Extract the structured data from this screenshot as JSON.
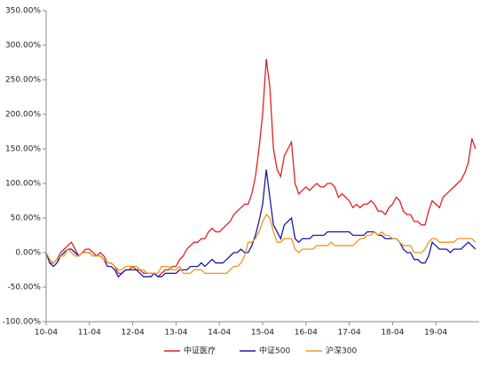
{
  "chart_data": {
    "type": "line",
    "categories": [
      "10-04",
      null,
      null,
      null,
      null,
      null,
      null,
      null,
      null,
      null,
      null,
      null,
      "11-04",
      null,
      null,
      null,
      null,
      null,
      null,
      null,
      null,
      null,
      null,
      null,
      "12-04",
      null,
      null,
      null,
      null,
      null,
      null,
      null,
      null,
      null,
      null,
      null,
      "13-04",
      null,
      null,
      null,
      null,
      null,
      null,
      null,
      null,
      null,
      null,
      null,
      "14-04",
      null,
      null,
      null,
      null,
      null,
      null,
      null,
      null,
      null,
      null,
      null,
      "15-04",
      null,
      null,
      null,
      null,
      null,
      null,
      null,
      null,
      null,
      null,
      null,
      "16-04",
      null,
      null,
      null,
      null,
      null,
      null,
      null,
      null,
      null,
      null,
      null,
      "17-04",
      null,
      null,
      null,
      null,
      null,
      null,
      null,
      null,
      null,
      null,
      null,
      "18-04",
      null,
      null,
      null,
      null,
      null,
      null,
      null,
      null,
      null,
      null,
      null,
      "19-04",
      null,
      null,
      null,
      null,
      null,
      null,
      null,
      null,
      null,
      null,
      null
    ],
    "series": [
      {
        "name": "中证医疗",
        "color": "#e02020",
        "values": [
          0,
          -15,
          -15,
          -10,
          0,
          5,
          10,
          15,
          5,
          -5,
          0,
          5,
          5,
          0,
          -5,
          0,
          -5,
          -15,
          -15,
          -20,
          -30,
          -30,
          -25,
          -25,
          -20,
          -25,
          -25,
          -30,
          -30,
          -30,
          -30,
          -35,
          -30,
          -25,
          -25,
          -20,
          -20,
          -10,
          -5,
          5,
          10,
          15,
          15,
          20,
          20,
          30,
          35,
          30,
          30,
          35,
          40,
          45,
          55,
          60,
          65,
          70,
          70,
          85,
          110,
          150,
          200,
          280,
          240,
          150,
          120,
          110,
          140,
          150,
          160,
          100,
          85,
          90,
          95,
          90,
          95,
          100,
          95,
          95,
          100,
          100,
          95,
          80,
          85,
          80,
          75,
          65,
          70,
          65,
          70,
          70,
          75,
          70,
          60,
          60,
          55,
          65,
          70,
          80,
          75,
          60,
          55,
          55,
          45,
          45,
          40,
          40,
          60,
          75,
          70,
          65,
          80,
          85,
          90,
          95,
          100,
          105,
          115,
          130,
          165,
          150
        ]
      },
      {
        "name": "中证500",
        "color": "#1a1aa8",
        "values": [
          0,
          -15,
          -20,
          -15,
          -5,
          0,
          5,
          5,
          0,
          -5,
          0,
          0,
          0,
          -5,
          -5,
          -5,
          -10,
          -20,
          -20,
          -25,
          -35,
          -30,
          -25,
          -25,
          -25,
          -25,
          -30,
          -35,
          -35,
          -35,
          -30,
          -35,
          -35,
          -30,
          -30,
          -30,
          -30,
          -25,
          -25,
          -25,
          -20,
          -20,
          -20,
          -15,
          -20,
          -15,
          -10,
          -15,
          -15,
          -15,
          -10,
          -5,
          0,
          0,
          5,
          0,
          0,
          10,
          25,
          45,
          70,
          120,
          80,
          40,
          30,
          20,
          40,
          45,
          50,
          20,
          15,
          20,
          20,
          20,
          25,
          25,
          25,
          25,
          30,
          30,
          30,
          30,
          30,
          30,
          30,
          25,
          25,
          25,
          25,
          30,
          30,
          30,
          25,
          25,
          20,
          20,
          20,
          20,
          15,
          5,
          0,
          0,
          -10,
          -10,
          -15,
          -15,
          -5,
          15,
          10,
          5,
          5,
          5,
          0,
          5,
          5,
          5,
          10,
          15,
          10,
          5
        ]
      },
      {
        "name": "沪深300",
        "color": "#f0961e",
        "values": [
          0,
          -10,
          -15,
          -10,
          -5,
          -5,
          5,
          0,
          -5,
          -5,
          0,
          0,
          0,
          -5,
          -5,
          -5,
          -10,
          -15,
          -15,
          -20,
          -25,
          -25,
          -20,
          -20,
          -20,
          -20,
          -25,
          -25,
          -30,
          -30,
          -30,
          -30,
          -20,
          -20,
          -20,
          -25,
          -25,
          -20,
          -30,
          -30,
          -30,
          -25,
          -25,
          -25,
          -30,
          -30,
          -30,
          -30,
          -30,
          -30,
          -30,
          -25,
          -20,
          -20,
          -15,
          -5,
          15,
          15,
          20,
          30,
          45,
          55,
          50,
          30,
          15,
          15,
          20,
          20,
          20,
          5,
          0,
          5,
          5,
          5,
          5,
          10,
          10,
          10,
          10,
          15,
          10,
          10,
          10,
          10,
          10,
          10,
          15,
          20,
          20,
          25,
          25,
          30,
          25,
          30,
          25,
          25,
          20,
          20,
          15,
          10,
          10,
          10,
          0,
          0,
          0,
          5,
          15,
          20,
          20,
          15,
          15,
          15,
          15,
          15,
          20,
          20,
          20,
          20,
          20,
          15
        ]
      }
    ],
    "ylim": [
      -100,
      350
    ],
    "yticks": [
      {
        "value": -100,
        "label": "-100.00%"
      },
      {
        "value": -50,
        "label": "-50.00%"
      },
      {
        "value": 0,
        "label": "0.00%"
      },
      {
        "value": 50,
        "label": "50.00%"
      },
      {
        "value": 100,
        "label": "100.00%"
      },
      {
        "value": 150,
        "label": "150.00%"
      },
      {
        "value": 200,
        "label": "200.00%"
      },
      {
        "value": 250,
        "label": "250.00%"
      },
      {
        "value": 300,
        "label": "300.00%"
      },
      {
        "value": 350,
        "label": "350.00%"
      }
    ],
    "legend": "bottom"
  }
}
